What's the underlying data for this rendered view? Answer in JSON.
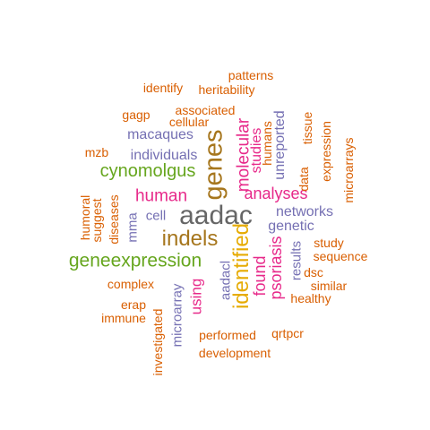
{
  "palette": {
    "orange": "#D95F02",
    "purple": "#7570B3",
    "magenta": "#E7298A",
    "green": "#66A61E",
    "gold": "#E6AB02",
    "brown": "#A6761D",
    "gray": "#666666"
  },
  "words": [
    {
      "text": "aadac",
      "color": "gray"
    },
    {
      "text": "indels",
      "color": "brown"
    },
    {
      "text": "geneexpression",
      "color": "green"
    },
    {
      "text": "genes",
      "color": "brown"
    },
    {
      "text": "cynomolgus",
      "color": "green"
    },
    {
      "text": "identified",
      "color": "gold"
    },
    {
      "text": "human",
      "color": "magenta"
    },
    {
      "text": "analyses",
      "color": "magenta"
    },
    {
      "text": "molecular",
      "color": "magenta"
    },
    {
      "text": "psoriasis",
      "color": "magenta"
    },
    {
      "text": "found",
      "color": "magenta"
    },
    {
      "text": "studies",
      "color": "magenta"
    },
    {
      "text": "using",
      "color": "magenta"
    },
    {
      "text": "macaques",
      "color": "purple"
    },
    {
      "text": "individuals",
      "color": "purple"
    },
    {
      "text": "networks",
      "color": "purple"
    },
    {
      "text": "genetic",
      "color": "purple"
    },
    {
      "text": "unreported",
      "color": "purple"
    },
    {
      "text": "cell",
      "color": "purple"
    },
    {
      "text": "mma",
      "color": "purple"
    },
    {
      "text": "aadacl",
      "color": "purple"
    },
    {
      "text": "microarray",
      "color": "purple"
    },
    {
      "text": "results",
      "color": "purple"
    },
    {
      "text": "patterns",
      "color": "orange"
    },
    {
      "text": "identify",
      "color": "orange"
    },
    {
      "text": "heritability",
      "color": "orange"
    },
    {
      "text": "associated",
      "color": "orange"
    },
    {
      "text": "gagp",
      "color": "orange"
    },
    {
      "text": "cellular",
      "color": "orange"
    },
    {
      "text": "humans",
      "color": "orange"
    },
    {
      "text": "data",
      "color": "orange"
    },
    {
      "text": "tissue",
      "color": "orange"
    },
    {
      "text": "expression",
      "color": "orange"
    },
    {
      "text": "microarrays",
      "color": "orange"
    },
    {
      "text": "mzb",
      "color": "orange"
    },
    {
      "text": "humoral",
      "color": "orange"
    },
    {
      "text": "suggest",
      "color": "orange"
    },
    {
      "text": "diseases",
      "color": "orange"
    },
    {
      "text": "study",
      "color": "orange"
    },
    {
      "text": "sequence",
      "color": "orange"
    },
    {
      "text": "dsc",
      "color": "orange"
    },
    {
      "text": "similar",
      "color": "orange"
    },
    {
      "text": "healthy",
      "color": "orange"
    },
    {
      "text": "complex",
      "color": "orange"
    },
    {
      "text": "erap",
      "color": "orange"
    },
    {
      "text": "immune",
      "color": "orange"
    },
    {
      "text": "investigated",
      "color": "orange"
    },
    {
      "text": "performed",
      "color": "orange"
    },
    {
      "text": "qrtpcr",
      "color": "orange"
    },
    {
      "text": "development",
      "color": "orange"
    }
  ]
}
